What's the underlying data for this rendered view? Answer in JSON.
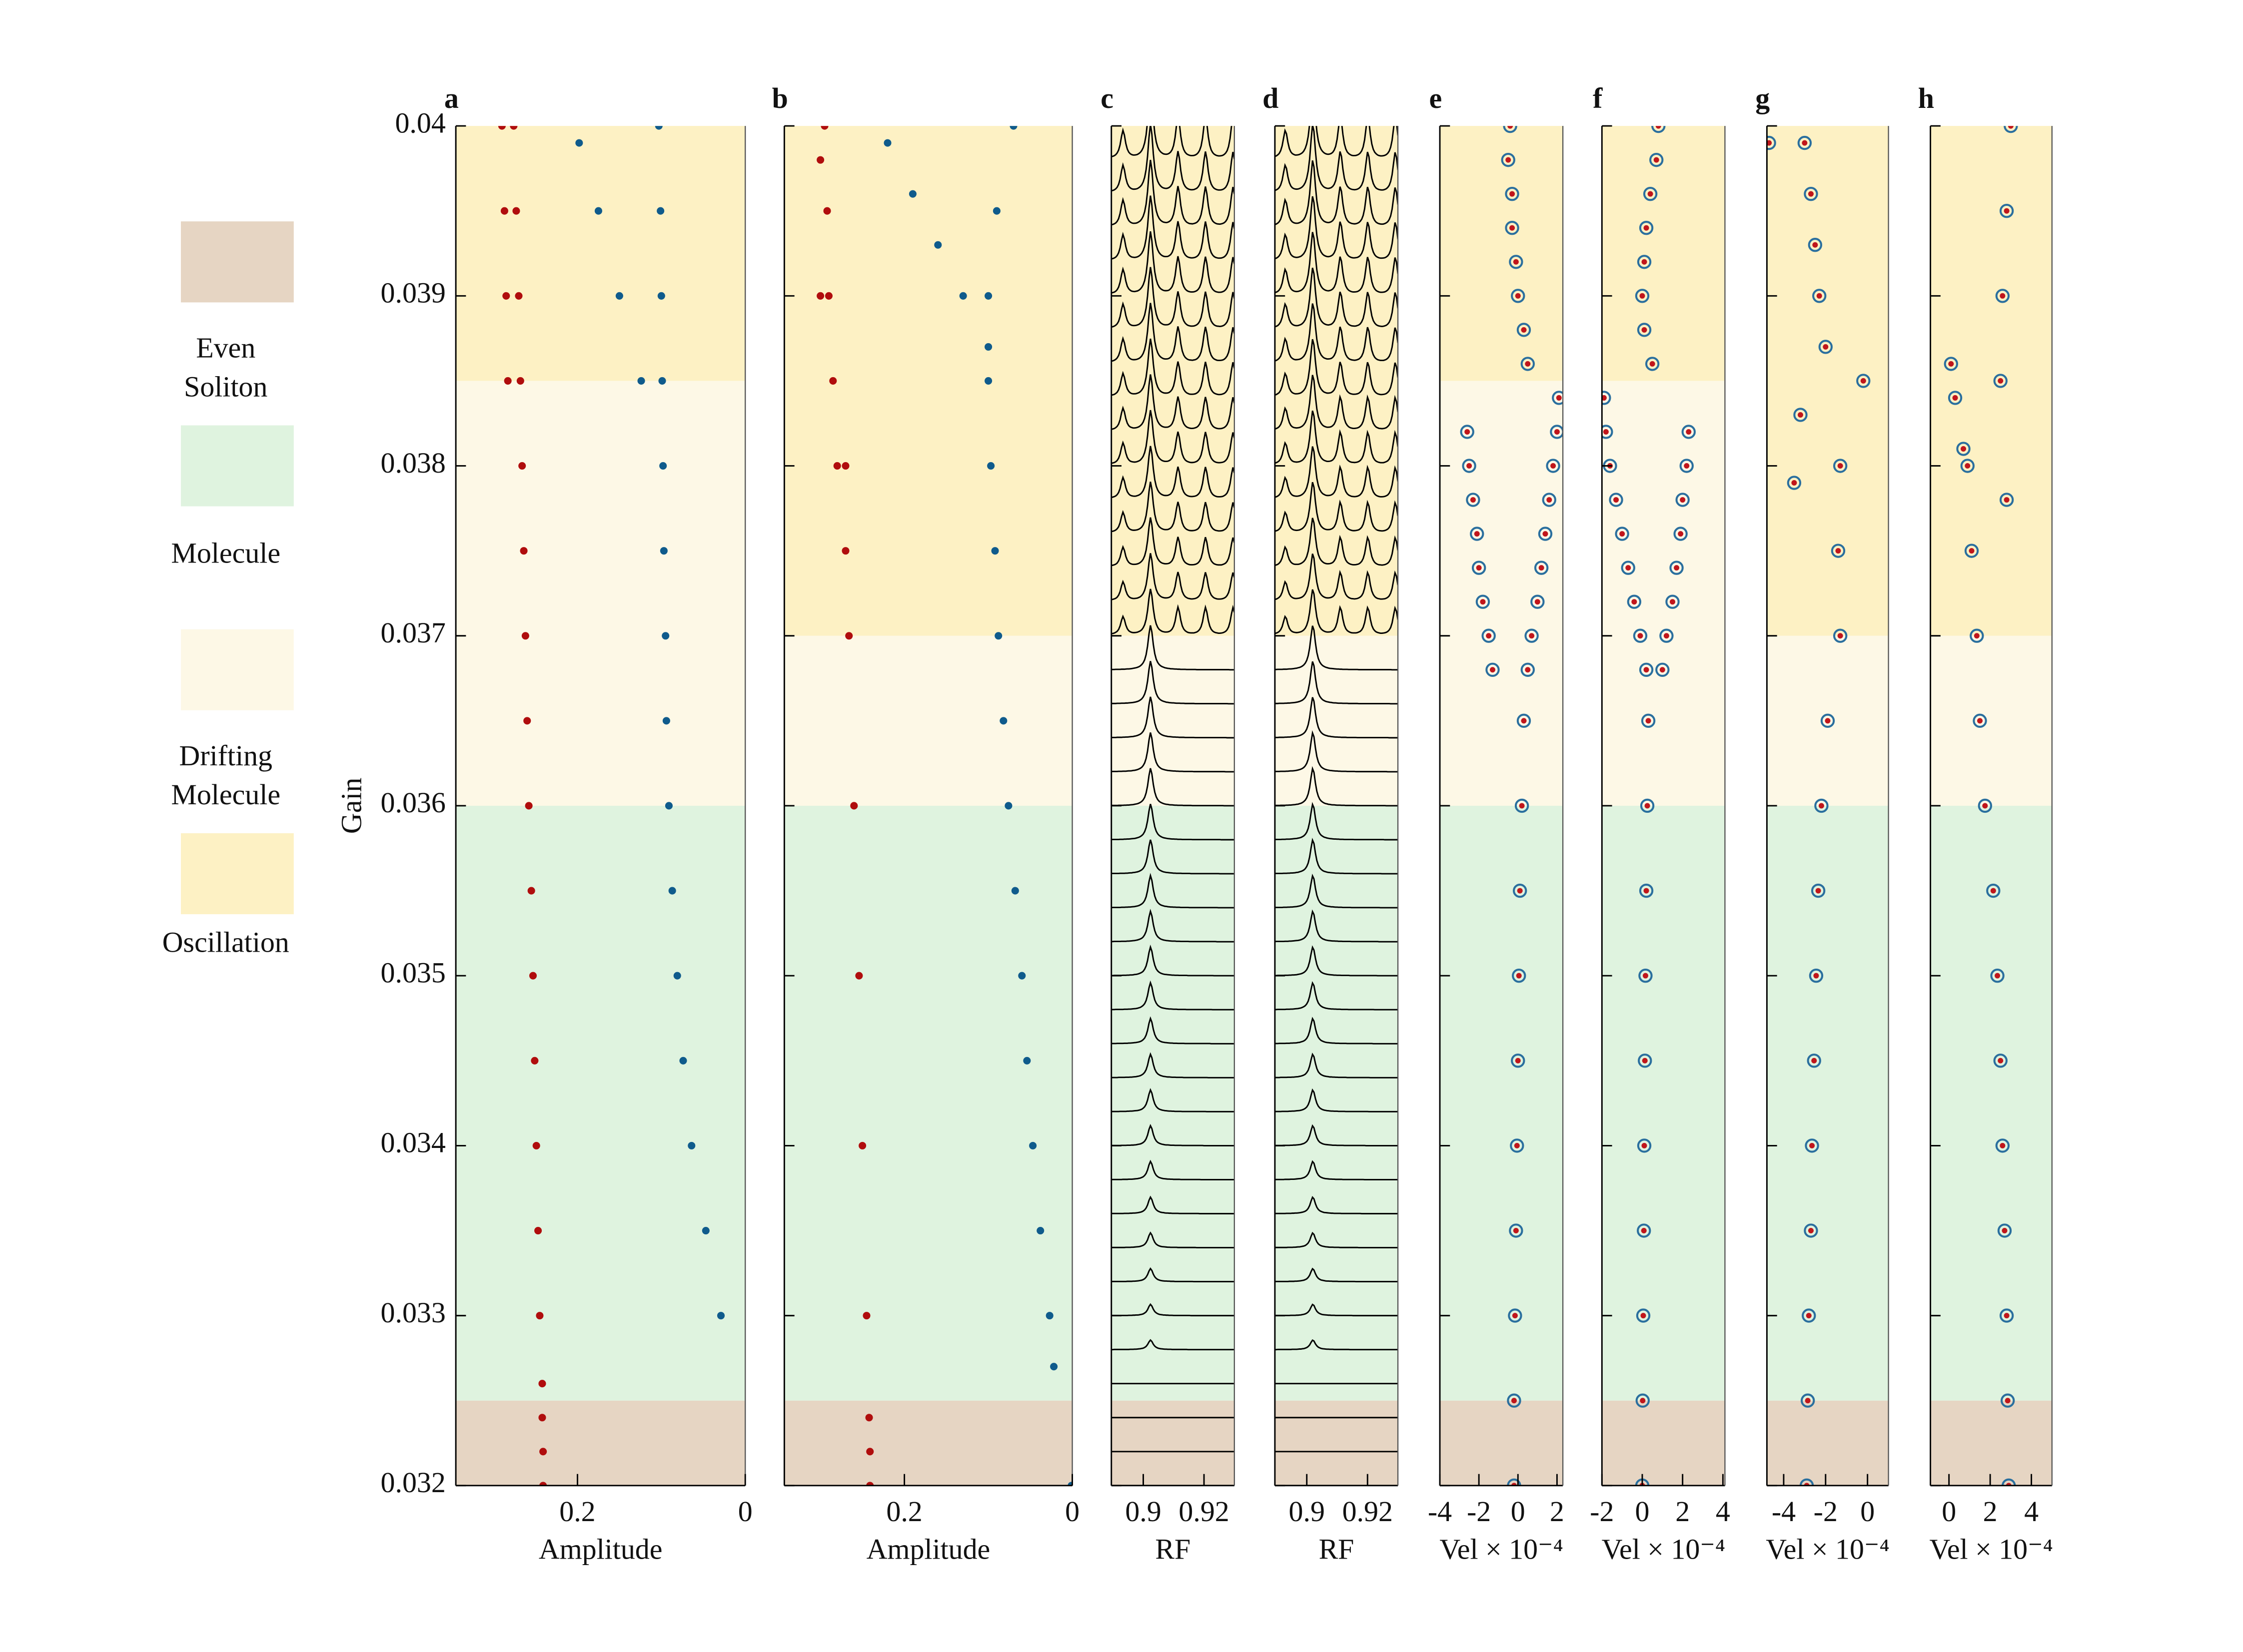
{
  "chart_data": {
    "ylabel": "Gain",
    "ylim": [
      0.032,
      0.04
    ],
    "yticks": [
      0.032,
      0.033,
      0.034,
      0.035,
      0.036,
      0.037,
      0.038,
      0.039,
      0.04
    ],
    "regions": [
      {
        "name": "Even Soliton",
        "color": "#e6d5c3"
      },
      {
        "name": "Molecule",
        "color": "#dff3df"
      },
      {
        "name": "Drifting Molecule",
        "color": "#fdf8e6"
      },
      {
        "name": "Oscillation",
        "color": "#fdf1c4"
      }
    ],
    "panels": [
      {
        "label": "a",
        "type": "scatter",
        "xlabel": "Amplitude",
        "xlim": [
          0.345,
          0
        ],
        "xticks": [
          0.2,
          0
        ],
        "region_bounds": [
          0.032,
          0.0325,
          0.036,
          0.0385,
          0.04
        ],
        "series": [
          {
            "color": "#b00d0d",
            "marker": "dot",
            "y": [
              0.032,
              0.0322,
              0.0324,
              0.0326,
              0.033,
              0.0335,
              0.034,
              0.0345,
              0.035,
              0.0355,
              0.036,
              0.0365,
              0.037,
              0.0375,
              0.038,
              0.0385,
              0.039,
              0.0395,
              0.04,
              0.0385,
              0.039,
              0.0395,
              0.04
            ],
            "x": [
              0.241,
              0.241,
              0.242,
              0.242,
              0.245,
              0.247,
              0.249,
              0.251,
              0.253,
              0.255,
              0.258,
              0.26,
              0.262,
              0.264,
              0.266,
              0.268,
              0.27,
              0.273,
              0.276,
              0.283,
              0.285,
              0.287,
              0.29
            ]
          },
          {
            "color": "#0f5b8c",
            "marker": "dot",
            "y": [
              0.033,
              0.0335,
              0.034,
              0.0345,
              0.035,
              0.0355,
              0.036,
              0.0365,
              0.037,
              0.0375,
              0.038,
              0.0385,
              0.039,
              0.0395,
              0.04,
              0.0385,
              0.039,
              0.0395,
              0.0399
            ],
            "x": [
              0.029,
              0.047,
              0.064,
              0.074,
              0.081,
              0.087,
              0.091,
              0.094,
              0.095,
              0.097,
              0.098,
              0.099,
              0.1,
              0.101,
              0.103,
              0.124,
              0.15,
              0.175,
              0.198
            ]
          }
        ]
      },
      {
        "label": "b",
        "type": "scatter",
        "xlabel": "Amplitude",
        "xlim": [
          0.343,
          0
        ],
        "xticks": [
          0.2,
          0
        ],
        "region_bounds": [
          0.032,
          0.0325,
          0.036,
          0.037,
          0.04
        ],
        "series": [
          {
            "color": "#b00d0d",
            "marker": "dot",
            "y": [
              0.032,
              0.0322,
              0.0324,
              0.033,
              0.034,
              0.035,
              0.036,
              0.037,
              0.0375,
              0.038,
              0.0385,
              0.039,
              0.0395,
              0.04,
              0.038,
              0.039,
              0.0398
            ],
            "x": [
              0.241,
              0.241,
              0.242,
              0.245,
              0.25,
              0.254,
              0.26,
              0.266,
              0.27,
              0.28,
              0.285,
              0.29,
              0.292,
              0.295,
              0.27,
              0.3,
              0.3
            ]
          },
          {
            "color": "#0f5b8c",
            "marker": "dot",
            "y": [
              0.032,
              0.0327,
              0.033,
              0.0335,
              0.034,
              0.0345,
              0.035,
              0.0355,
              0.036,
              0.0365,
              0.037,
              0.0375,
              0.038,
              0.0385,
              0.039,
              0.0395,
              0.04,
              0.0387,
              0.039,
              0.0393,
              0.0396,
              0.0399
            ],
            "x": [
              0.001,
              0.022,
              0.027,
              0.038,
              0.047,
              0.054,
              0.06,
              0.068,
              0.076,
              0.082,
              0.088,
              0.092,
              0.097,
              0.1,
              0.1,
              0.09,
              0.07,
              0.1,
              0.13,
              0.16,
              0.19,
              0.22
            ]
          }
        ]
      },
      {
        "label": "c",
        "type": "waterfall",
        "xlabel": "RF",
        "xlim": [
          0.8895,
          0.93
        ],
        "xticks": [
          0.9,
          0.92
        ],
        "region_bounds": [
          0.032,
          0.0325,
          0.036,
          0.037,
          0.04
        ],
        "peak_x": 0.9024,
        "traces": [
          0.032,
          0.0322,
          0.0324,
          0.0326,
          0.0328,
          0.033,
          0.0332,
          0.0334,
          0.0336,
          0.0338,
          0.034,
          0.0342,
          0.0344,
          0.0346,
          0.0348,
          0.035,
          0.0352,
          0.0354,
          0.0356,
          0.0358,
          0.036,
          0.0362,
          0.0364,
          0.0366,
          0.0368,
          0.037,
          0.0372,
          0.0374,
          0.0376,
          0.0378,
          0.038,
          0.0382,
          0.0384,
          0.0386,
          0.0388,
          0.039,
          0.0392,
          0.0394,
          0.0396,
          0.0398,
          0.04
        ]
      },
      {
        "label": "d",
        "type": "waterfall",
        "xlabel": "RF",
        "xlim": [
          0.8895,
          0.93
        ],
        "xticks": [
          0.9,
          0.92
        ],
        "region_bounds": [
          0.032,
          0.0325,
          0.036,
          0.037,
          0.04
        ],
        "peak_x": 0.902,
        "traces": [
          0.032,
          0.0322,
          0.0324,
          0.0326,
          0.0328,
          0.033,
          0.0332,
          0.0334,
          0.0336,
          0.0338,
          0.034,
          0.0342,
          0.0344,
          0.0346,
          0.0348,
          0.035,
          0.0352,
          0.0354,
          0.0356,
          0.0358,
          0.036,
          0.0362,
          0.0364,
          0.0366,
          0.0368,
          0.037,
          0.0372,
          0.0374,
          0.0376,
          0.0378,
          0.038,
          0.0382,
          0.0384,
          0.0386,
          0.0388,
          0.039,
          0.0392,
          0.0394,
          0.0396,
          0.0398,
          0.04
        ]
      },
      {
        "label": "e",
        "type": "scatter",
        "xlabel": "Vel × 10⁻⁴",
        "xlim": [
          -4,
          2.3
        ],
        "xticks": [
          -4,
          -2,
          0,
          2
        ],
        "region_bounds": [
          0.032,
          0.0325,
          0.036,
          0.0385,
          0.04
        ],
        "series": [
          {
            "color": "#c0161b",
            "edgecolor": "#2a6f9e",
            "marker": "ring",
            "y": [
              0.032,
              0.0325,
              0.033,
              0.0335,
              0.034,
              0.0345,
              0.035,
              0.0355,
              0.036,
              0.0365,
              0.0368,
              0.037,
              0.0372,
              0.0374,
              0.0376,
              0.0378,
              0.038,
              0.0382,
              0.0368,
              0.037,
              0.0372,
              0.0374,
              0.0376,
              0.0378,
              0.038,
              0.0382,
              0.0384,
              0.0386,
              0.0388,
              0.039,
              0.0392,
              0.0394,
              0.0396,
              0.0398,
              0.04
            ],
            "x": [
              -0.2,
              -0.2,
              -0.15,
              -0.1,
              -0.05,
              0,
              0.05,
              0.1,
              0.2,
              0.3,
              -1.3,
              -1.5,
              -1.8,
              -2,
              -2.1,
              -2.3,
              -2.5,
              -2.6,
              0.5,
              0.7,
              1,
              1.2,
              1.4,
              1.6,
              1.8,
              2,
              2.1,
              0.5,
              0.3,
              0,
              -0.1,
              -0.3,
              -0.3,
              -0.5,
              -0.4
            ]
          }
        ]
      },
      {
        "label": "f",
        "type": "scatter",
        "xlabel": "Vel × 10⁻⁴",
        "xlim": [
          -2,
          4.1
        ],
        "xticks": [
          -2,
          0,
          2,
          4
        ],
        "region_bounds": [
          0.032,
          0.0325,
          0.036,
          0.0385,
          0.04
        ],
        "series": [
          {
            "color": "#c0161b",
            "edgecolor": "#2a6f9e",
            "marker": "ring",
            "y": [
              0.032,
              0.0325,
              0.033,
              0.0335,
              0.034,
              0.0345,
              0.035,
              0.0355,
              0.036,
              0.0365,
              0.0368,
              0.037,
              0.0372,
              0.0374,
              0.0376,
              0.0378,
              0.038,
              0.0382,
              0.0368,
              0.037,
              0.0372,
              0.0374,
              0.0376,
              0.0378,
              0.038,
              0.0382,
              0.0384,
              0.0386,
              0.0388,
              0.039,
              0.0392,
              0.0394,
              0.0396,
              0.0398,
              0.04
            ],
            "x": [
              0,
              0.02,
              0.05,
              0.08,
              0.1,
              0.13,
              0.16,
              0.2,
              0.25,
              0.3,
              1,
              1.2,
              1.5,
              1.7,
              1.9,
              2,
              2.2,
              2.3,
              0.2,
              -0.1,
              -0.4,
              -0.7,
              -1,
              -1.3,
              -1.6,
              -1.8,
              -1.9,
              0.5,
              0.1,
              0,
              0.1,
              0.2,
              0.4,
              0.7,
              0.8
            ]
          }
        ]
      },
      {
        "label": "g",
        "type": "scatter",
        "xlabel": "Vel × 10⁻⁴",
        "xlim": [
          -4.8,
          1
        ],
        "xticks": [
          -4,
          -2,
          0
        ],
        "region_bounds": [
          0.032,
          0.0325,
          0.036,
          0.037,
          0.04
        ],
        "series": [
          {
            "color": "#c0161b",
            "edgecolor": "#2a6f9e",
            "marker": "ring",
            "y": [
              0.032,
              0.0325,
              0.033,
              0.0335,
              0.034,
              0.0345,
              0.035,
              0.0355,
              0.036,
              0.0365,
              0.037,
              0.0375,
              0.038,
              0.0385,
              0.0387,
              0.039,
              0.0393,
              0.0396,
              0.0399,
              0.0383,
              0.0379,
              0.0399
            ],
            "x": [
              -2.9,
              -2.85,
              -2.8,
              -2.7,
              -2.65,
              -2.55,
              -2.45,
              -2.35,
              -2.2,
              -1.9,
              -1.3,
              -1.4,
              -1.3,
              -0.2,
              -2,
              -2.3,
              -2.5,
              -2.7,
              -3,
              -3.2,
              -3.5,
              -4.7
            ]
          }
        ]
      },
      {
        "label": "h",
        "type": "scatter",
        "xlabel": "Vel × 10⁻⁴",
        "xlim": [
          -0.9,
          5
        ],
        "xticks": [
          0,
          2,
          4
        ],
        "region_bounds": [
          0.032,
          0.0325,
          0.036,
          0.037,
          0.04
        ],
        "series": [
          {
            "color": "#c0161b",
            "edgecolor": "#2a6f9e",
            "marker": "ring",
            "y": [
              0.032,
              0.0325,
              0.033,
              0.0335,
              0.034,
              0.0345,
              0.035,
              0.0355,
              0.036,
              0.0365,
              0.037,
              0.0375,
              0.038,
              0.0385,
              0.039,
              0.0395,
              0.04,
              0.0386,
              0.0384,
              0.0381,
              0.0378
            ],
            "x": [
              2.9,
              2.85,
              2.8,
              2.7,
              2.6,
              2.5,
              2.35,
              2.15,
              1.75,
              1.5,
              1.35,
              1.1,
              0.9,
              2.5,
              2.6,
              2.8,
              3,
              0.1,
              0.3,
              0.7,
              2.8
            ]
          }
        ]
      }
    ]
  }
}
